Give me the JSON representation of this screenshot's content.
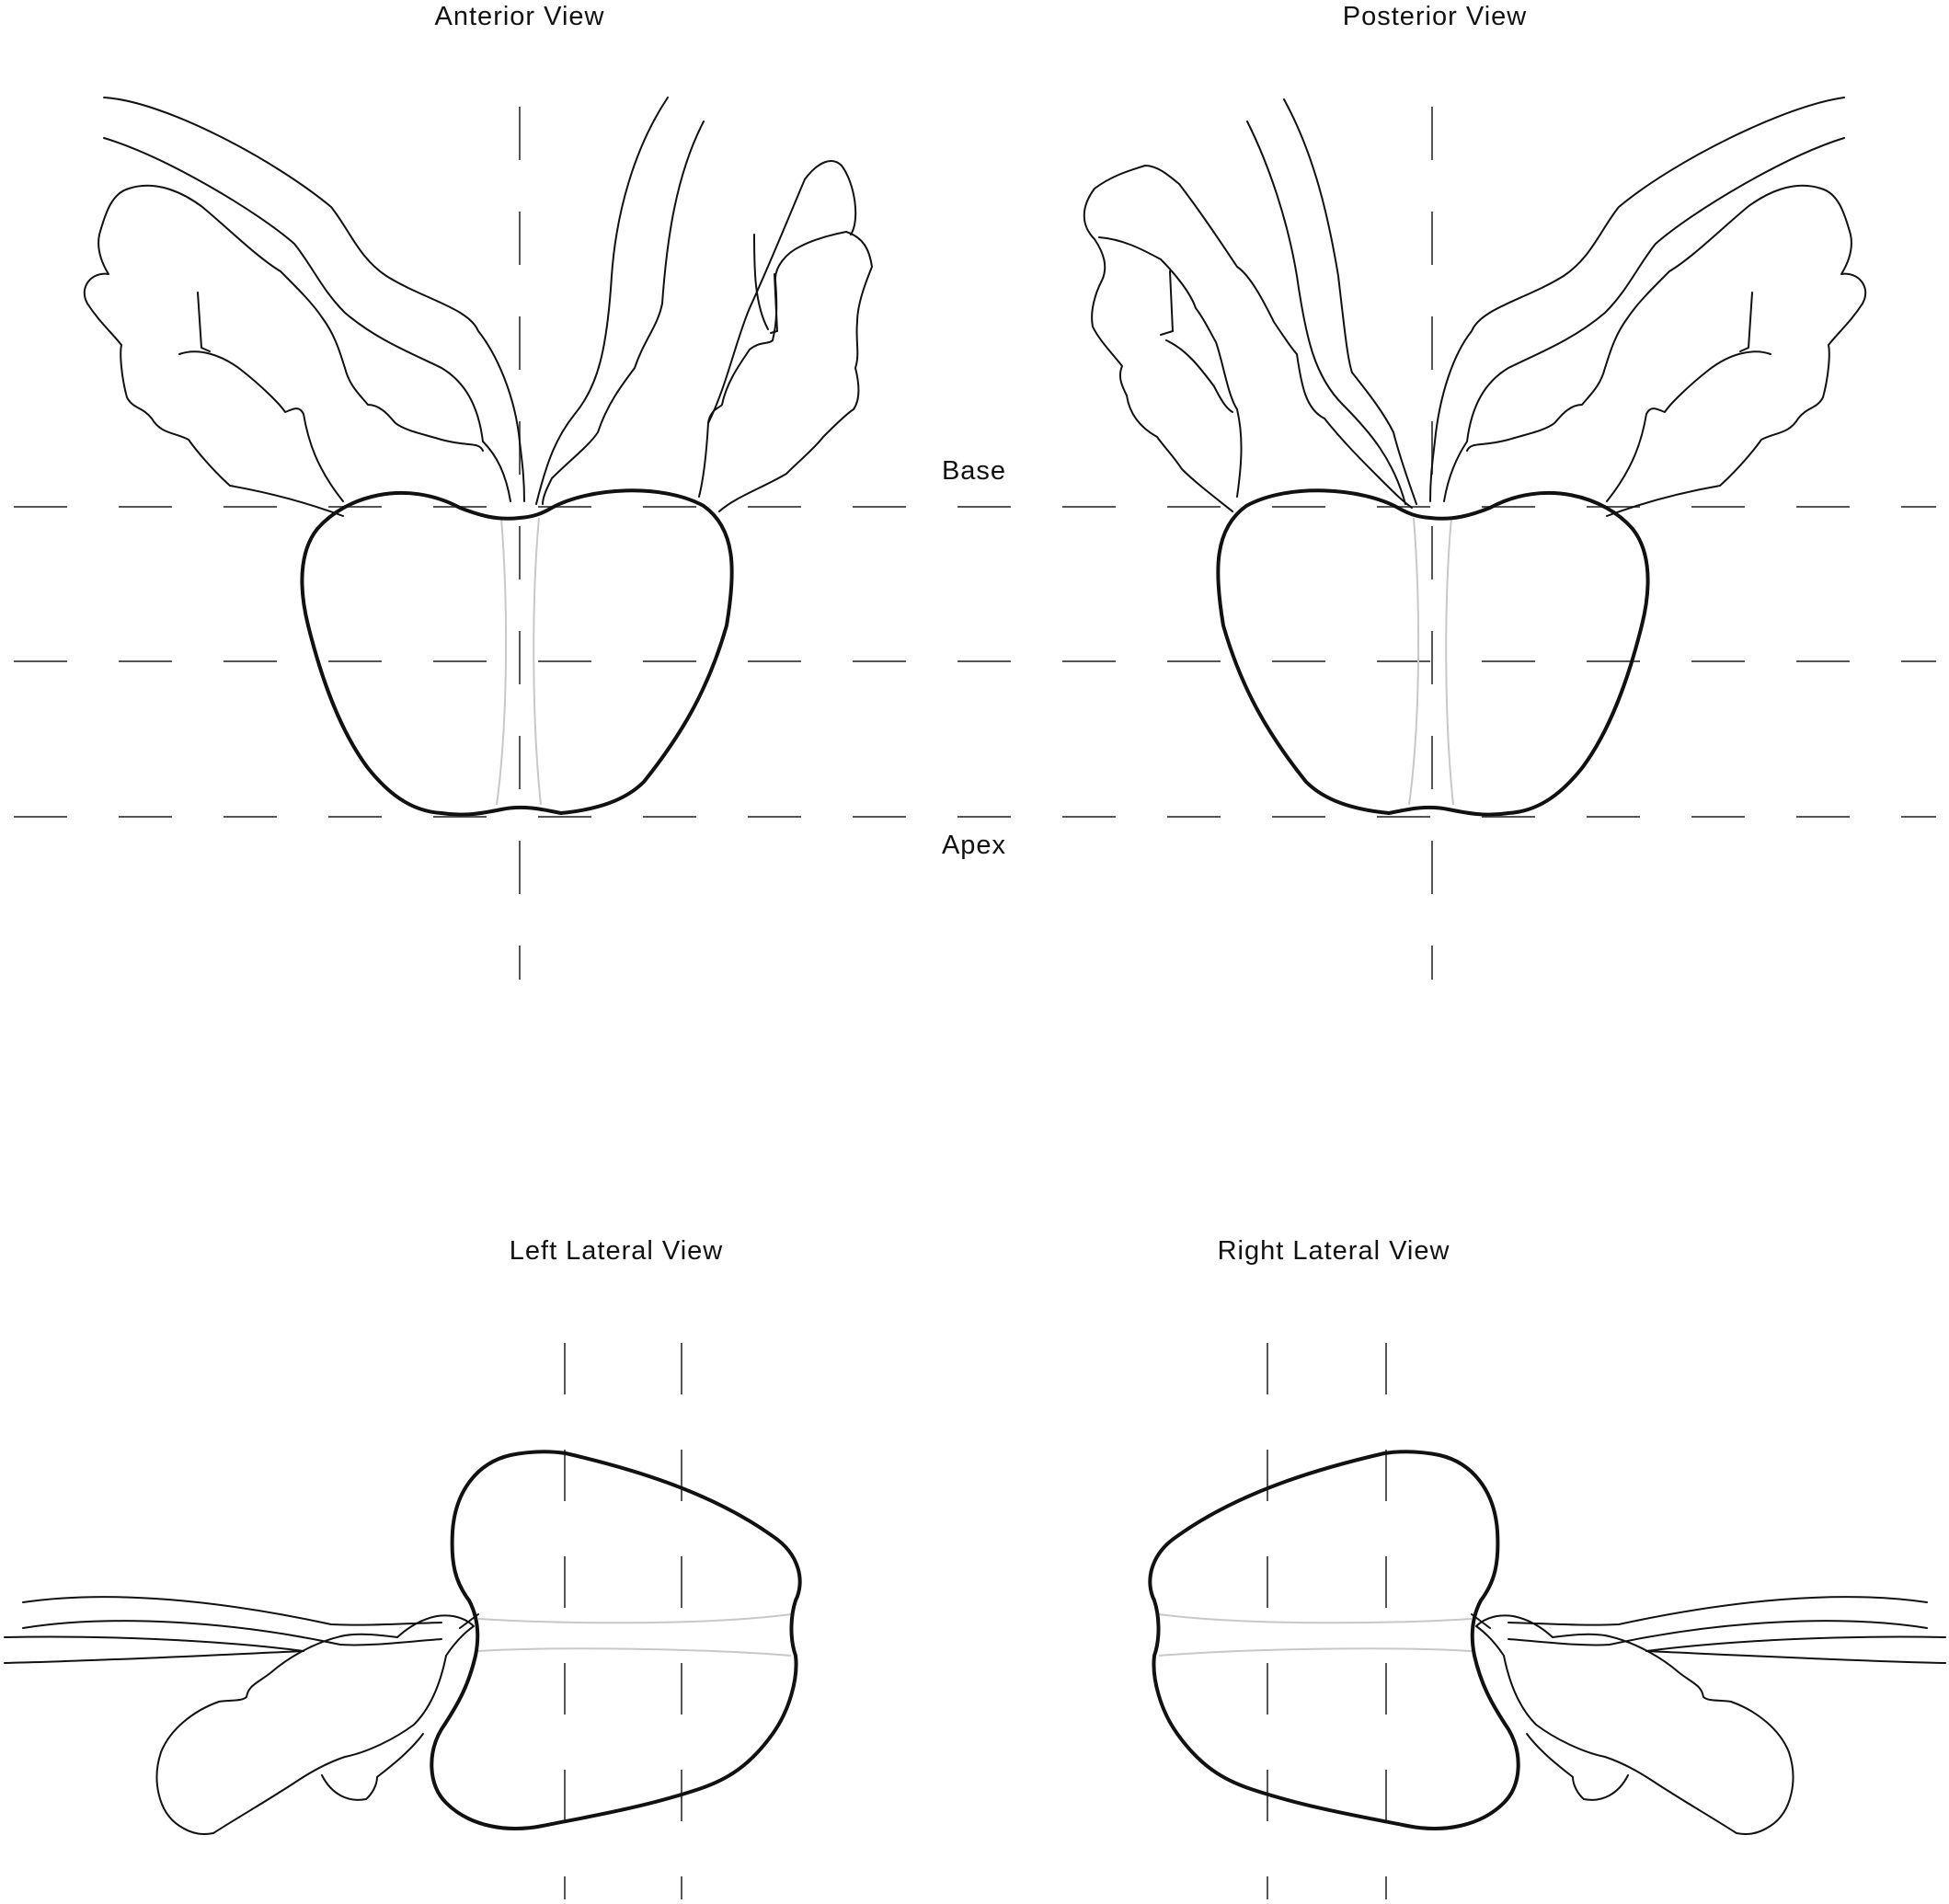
{
  "views": {
    "anterior": "Anterior View",
    "posterior": "Posterior View",
    "left_lateral": "Left Lateral View",
    "right_lateral": "Right Lateral View"
  },
  "levels": {
    "base": "Base",
    "apex": "Apex"
  }
}
